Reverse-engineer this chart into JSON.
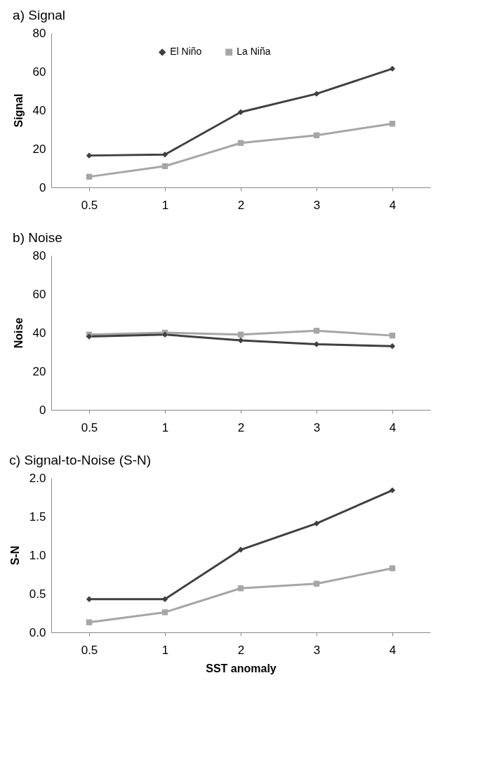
{
  "chart_data": [
    {
      "type": "line",
      "title": "a) Signal",
      "ylabel": "Signal",
      "categories": [
        "0.5",
        "1",
        "2",
        "3",
        "4"
      ],
      "ylim": [
        0,
        80
      ],
      "yticks": [
        0,
        20,
        40,
        60,
        80
      ],
      "grid": false,
      "legend": "top",
      "series": [
        {
          "name": "El Niño",
          "color": "#404040",
          "marker": "diamond",
          "values": [
            16.5,
            17,
            39,
            48.5,
            61.5
          ]
        },
        {
          "name": "La Niña",
          "color": "#a6a6a6",
          "marker": "square",
          "values": [
            5.5,
            11,
            23,
            27,
            33
          ]
        }
      ]
    },
    {
      "type": "line",
      "title": "b) Noise",
      "ylabel": "Noise",
      "categories": [
        "0.5",
        "1",
        "2",
        "3",
        "4"
      ],
      "ylim": [
        0,
        80
      ],
      "yticks": [
        0,
        20,
        40,
        60,
        80
      ],
      "grid": false,
      "legend": "top",
      "series": [
        {
          "name": "El Niño",
          "color": "#404040",
          "marker": "diamond",
          "values": [
            38,
            39,
            36,
            34,
            33
          ]
        },
        {
          "name": "La Niña",
          "color": "#a6a6a6",
          "marker": "square",
          "values": [
            39,
            40,
            39,
            41,
            38.5
          ]
        }
      ]
    },
    {
      "type": "line",
      "title": "c) Signal-to-Noise (S-N)",
      "ylabel": "S-N",
      "xlabel": "SST anomaly",
      "categories": [
        "0.5",
        "1",
        "2",
        "3",
        "4"
      ],
      "ylim": [
        0,
        2
      ],
      "yticks": [
        {
          "value": 0,
          "label": "0.0"
        },
        0.5,
        {
          "value": 1,
          "label": "1.0"
        },
        1.5,
        {
          "value": 2,
          "label": "2.0"
        }
      ],
      "grid": false,
      "legend": "top",
      "series": [
        {
          "name": "El Niño",
          "color": "#404040",
          "marker": "diamond",
          "values": [
            0.43,
            0.43,
            1.07,
            1.41,
            1.84
          ]
        },
        {
          "name": "La Niña",
          "color": "#a6a6a6",
          "marker": "square",
          "values": [
            0.13,
            0.26,
            0.57,
            0.63,
            0.83
          ]
        }
      ]
    }
  ]
}
